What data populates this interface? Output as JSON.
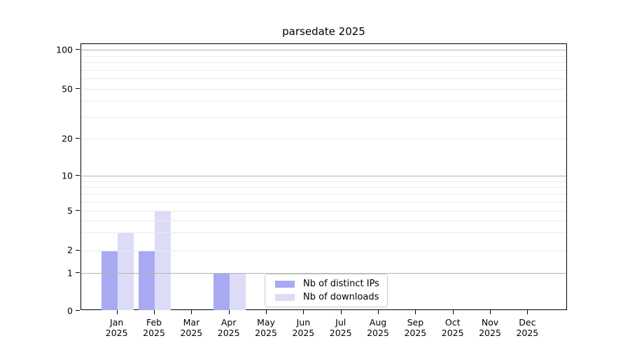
{
  "title": "parsedate 2025",
  "chart_data": {
    "type": "bar",
    "title": "parsedate 2025",
    "categories": [
      "Jan 2025",
      "Feb 2025",
      "Mar 2025",
      "Apr 2025",
      "May 2025",
      "Jun 2025",
      "Jul 2025",
      "Aug 2025",
      "Sep 2025",
      "Oct 2025",
      "Nov 2025",
      "Dec 2025"
    ],
    "series": [
      {
        "name": "Nb of distinct IPs",
        "color": "#a9a9f3",
        "values": [
          2,
          2,
          0,
          1,
          0,
          0,
          0,
          0,
          0,
          0,
          0,
          0
        ]
      },
      {
        "name": "Nb of downloads",
        "color": "#dcdcf8",
        "values": [
          3,
          5,
          0,
          1,
          0,
          0,
          0,
          0,
          0,
          0,
          0,
          0
        ]
      }
    ],
    "y_axis": {
      "scale": "symlog",
      "tick_values": [
        0,
        1,
        2,
        5,
        10,
        20,
        50,
        100
      ],
      "tick_labels": [
        "0",
        "1",
        "2",
        "5",
        "10",
        "20",
        "50",
        "100"
      ],
      "range": [
        0,
        120
      ]
    },
    "grid": {
      "on": true,
      "major_values": [
        1,
        10,
        100
      ],
      "minor_values": [
        2,
        3,
        4,
        5,
        6,
        7,
        8,
        9,
        20,
        30,
        40,
        50,
        60,
        70,
        80,
        90
      ],
      "major_color": "#b3b3b3",
      "minor_color": "#ebebeb"
    },
    "legend": {
      "position": "lower center",
      "labels": [
        "Nb of distinct IPs",
        "Nb of downloads"
      ]
    }
  },
  "colors": {
    "background": "#ffffff",
    "axis": "#000000",
    "text": "#000000",
    "legend_border": "#cccccc"
  }
}
